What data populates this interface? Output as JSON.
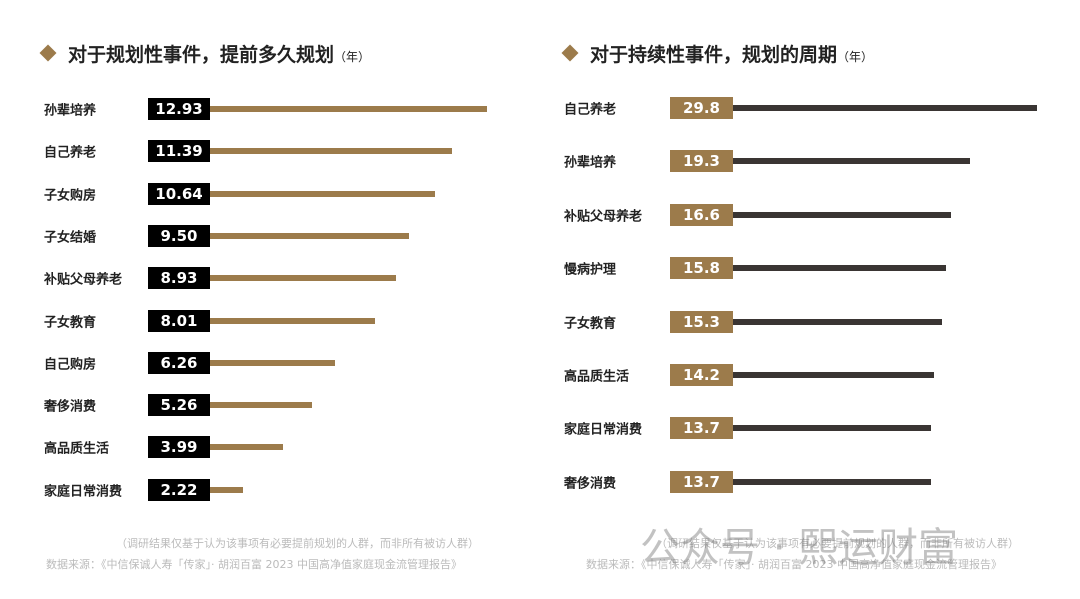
{
  "chart_data": [
    {
      "type": "bar",
      "orientation": "horizontal",
      "title": "对于规划性事件，提前多久规划",
      "unit": "（年）",
      "categories": [
        "孙辈培养",
        "自己养老",
        "子女购房",
        "子女结婚",
        "补贴父母养老",
        "子女教育",
        "自己购房",
        "奢侈消费",
        "高品质生活",
        "家庭日常消费"
      ],
      "values": [
        "12.93",
        "11.39",
        "10.64",
        "9.50",
        "8.93",
        "8.01",
        "6.26",
        "5.26",
        "3.99",
        "2.22"
      ],
      "bar_color": "#9c7b4b",
      "label_box_color": "#000000",
      "note": "（调研结果仅基于认为该事项有必要提前规划的人群，而非所有被访人群）",
      "source": "数据来源：《中信保诚人寿「传家」· 胡润百富 2023 中国高净值家庭现金流管理报告》"
    },
    {
      "type": "bar",
      "orientation": "horizontal",
      "title": "对于持续性事件，规划的周期",
      "unit": "（年）",
      "categories": [
        "自己养老",
        "孙辈培养",
        "补贴父母养老",
        "慢病护理",
        "子女教育",
        "高品质生活",
        "家庭日常消费",
        "奢侈消费"
      ],
      "values": [
        "29.8",
        "19.3",
        "16.6",
        "15.8",
        "15.3",
        "14.2",
        "13.7",
        "13.7"
      ],
      "bar_color": "#3a3533",
      "label_box_color": "#9c7b4b",
      "note": "（调研结果仅基于认为该事项有必要提前规划的人群，而非所有被访人群）",
      "source": "数据来源：《中信保诚人寿「传家」· 胡润百富 2023 中国高净值家庭现金流管理报告》"
    }
  ],
  "watermark": "公众号 · 熙运财富"
}
